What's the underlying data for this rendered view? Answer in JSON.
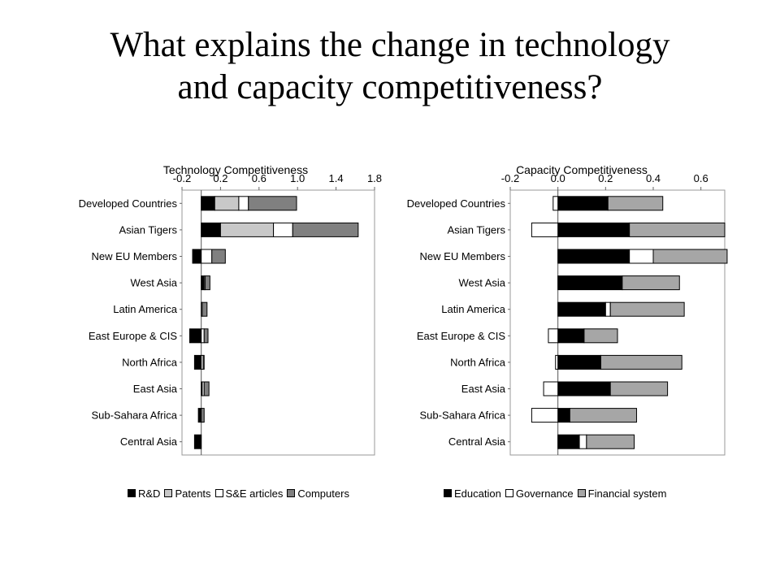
{
  "title": {
    "line1": "What explains the change in technology",
    "line2": "and capacity competitiveness?"
  },
  "colors": {
    "black": "#000000",
    "light_gray": "#c8c8c8",
    "white": "#ffffff",
    "dark_gray": "#808080",
    "mid_gray": "#a6a6a6"
  },
  "chart_data": [
    {
      "type": "bar",
      "stacked": true,
      "orientation": "horizontal",
      "title": "Technology Competitiveness",
      "xlim": [
        -0.2,
        1.8
      ],
      "xticks": [
        "-0.2",
        "0.2",
        "0.6",
        "1.0",
        "1.4",
        "1.8"
      ],
      "tick_values": [
        -0.2,
        0.2,
        0.6,
        1.0,
        1.4,
        1.8
      ],
      "grid": false,
      "legend_position": "bottom",
      "categories": [
        "Developed Countries",
        "Asian Tigers",
        "New EU Members",
        "West Asia",
        "Latin America",
        "East Europe & CIS",
        "North Africa",
        "East Asia",
        "Sub-Sahara Africa",
        "Central Asia"
      ],
      "series": [
        {
          "name": "R&D",
          "color": "#000000",
          "values": [
            0.14,
            0.2,
            -0.09,
            0.03,
            0.0,
            -0.12,
            -0.07,
            0.01,
            -0.03,
            -0.07
          ]
        },
        {
          "name": "Patents",
          "color": "#c8c8c8",
          "values": [
            0.25,
            0.55,
            0.0,
            0.0,
            0.0,
            0.0,
            0.0,
            0.0,
            0.0,
            0.0
          ]
        },
        {
          "name": "S&E articles",
          "color": "#ffffff",
          "values": [
            0.1,
            0.2,
            0.11,
            0.01,
            0.01,
            0.03,
            0.02,
            0.02,
            0.0,
            0.0
          ]
        },
        {
          "name": "Computers",
          "color": "#808080",
          "values": [
            0.5,
            0.68,
            0.14,
            0.05,
            0.05,
            0.04,
            0.01,
            0.05,
            0.03,
            0.0
          ]
        }
      ]
    },
    {
      "type": "bar",
      "stacked": true,
      "orientation": "horizontal",
      "title": "Capacity Competitiveness",
      "xlim": [
        -0.2,
        0.7
      ],
      "xticks": [
        "-0.2",
        "0.0",
        "0.2",
        "0.4",
        "0.6"
      ],
      "tick_values": [
        -0.2,
        0.0,
        0.2,
        0.4,
        0.6
      ],
      "grid": false,
      "legend_position": "bottom",
      "categories": [
        "Developed Countries",
        "Asian Tigers",
        "New EU Members",
        "West Asia",
        "Latin America",
        "East Europe & CIS",
        "North Africa",
        "East Asia",
        "Sub-Sahara Africa",
        "Central Asia"
      ],
      "series": [
        {
          "name": "Education",
          "color": "#000000",
          "values": [
            0.21,
            0.3,
            0.3,
            0.27,
            0.2,
            0.11,
            0.18,
            0.22,
            0.05,
            0.09
          ]
        },
        {
          "name": "Governance",
          "color": "#ffffff",
          "values": [
            -0.02,
            -0.11,
            0.1,
            0.0,
            0.02,
            -0.04,
            -0.01,
            -0.06,
            -0.11,
            0.03
          ]
        },
        {
          "name": "Financial system",
          "color": "#a6a6a6",
          "values": [
            0.23,
            0.4,
            0.31,
            0.24,
            0.31,
            0.14,
            0.34,
            0.24,
            0.28,
            0.2
          ]
        }
      ]
    }
  ]
}
